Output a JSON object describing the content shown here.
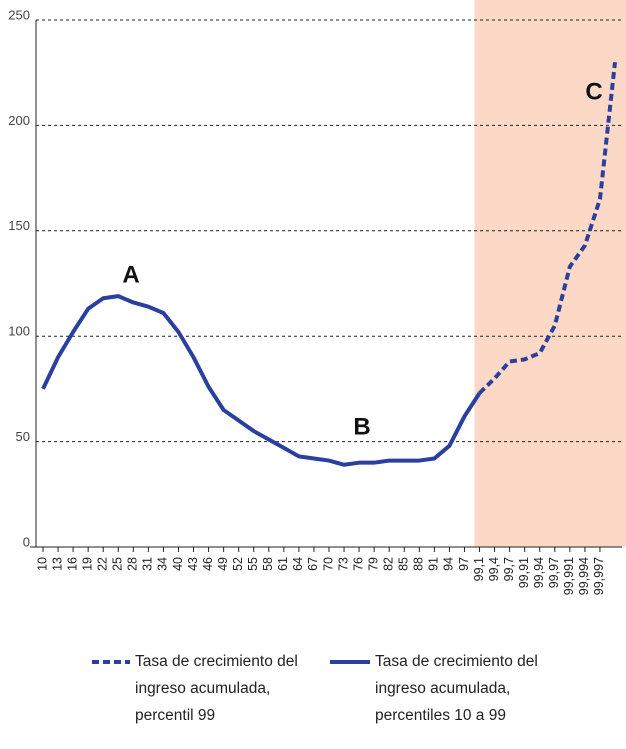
{
  "chart_data": {
    "type": "line",
    "categories": [
      "10",
      "13",
      "16",
      "19",
      "22",
      "25",
      "28",
      "31",
      "34",
      "40",
      "43",
      "46",
      "49",
      "52",
      "55",
      "58",
      "61",
      "64",
      "67",
      "70",
      "73",
      "76",
      "79",
      "82",
      "85",
      "88",
      "91",
      "94",
      "97",
      "99,1",
      "99,4",
      "99,7",
      "99,91",
      "99,94",
      "99,97",
      "99,991",
      "99,994",
      "99,997",
      null
    ],
    "series": [
      {
        "name": "Tasa de crecimiento del ingreso acumulada, percentil 99",
        "color": "#2a3f9e",
        "dash": true,
        "values": [
          null,
          null,
          null,
          null,
          null,
          null,
          null,
          null,
          null,
          null,
          null,
          null,
          null,
          null,
          null,
          null,
          null,
          null,
          null,
          null,
          null,
          null,
          null,
          null,
          null,
          null,
          null,
          null,
          null,
          73,
          80,
          88,
          89,
          92,
          105,
          133,
          143,
          165,
          230
        ]
      },
      {
        "name": "Tasa de crecimiento del ingreso acumulada, percentiles 10 a 99",
        "color": "#2a3f9e",
        "dash": false,
        "values": [
          75,
          90,
          102,
          113,
          118,
          119,
          116,
          114,
          111,
          102,
          90,
          76,
          65,
          60,
          55,
          51,
          47,
          43,
          42,
          41,
          39,
          40,
          40,
          41,
          41,
          41,
          42,
          48,
          62,
          73,
          null,
          null,
          null,
          null,
          null,
          null,
          null,
          null,
          null
        ]
      }
    ],
    "annotations": [
      "A",
      "B",
      "C"
    ],
    "ylim": [
      0,
      250
    ],
    "yticks": [
      0,
      50,
      100,
      150,
      200,
      250
    ],
    "grid": true,
    "shaded_from": "99,1"
  }
}
